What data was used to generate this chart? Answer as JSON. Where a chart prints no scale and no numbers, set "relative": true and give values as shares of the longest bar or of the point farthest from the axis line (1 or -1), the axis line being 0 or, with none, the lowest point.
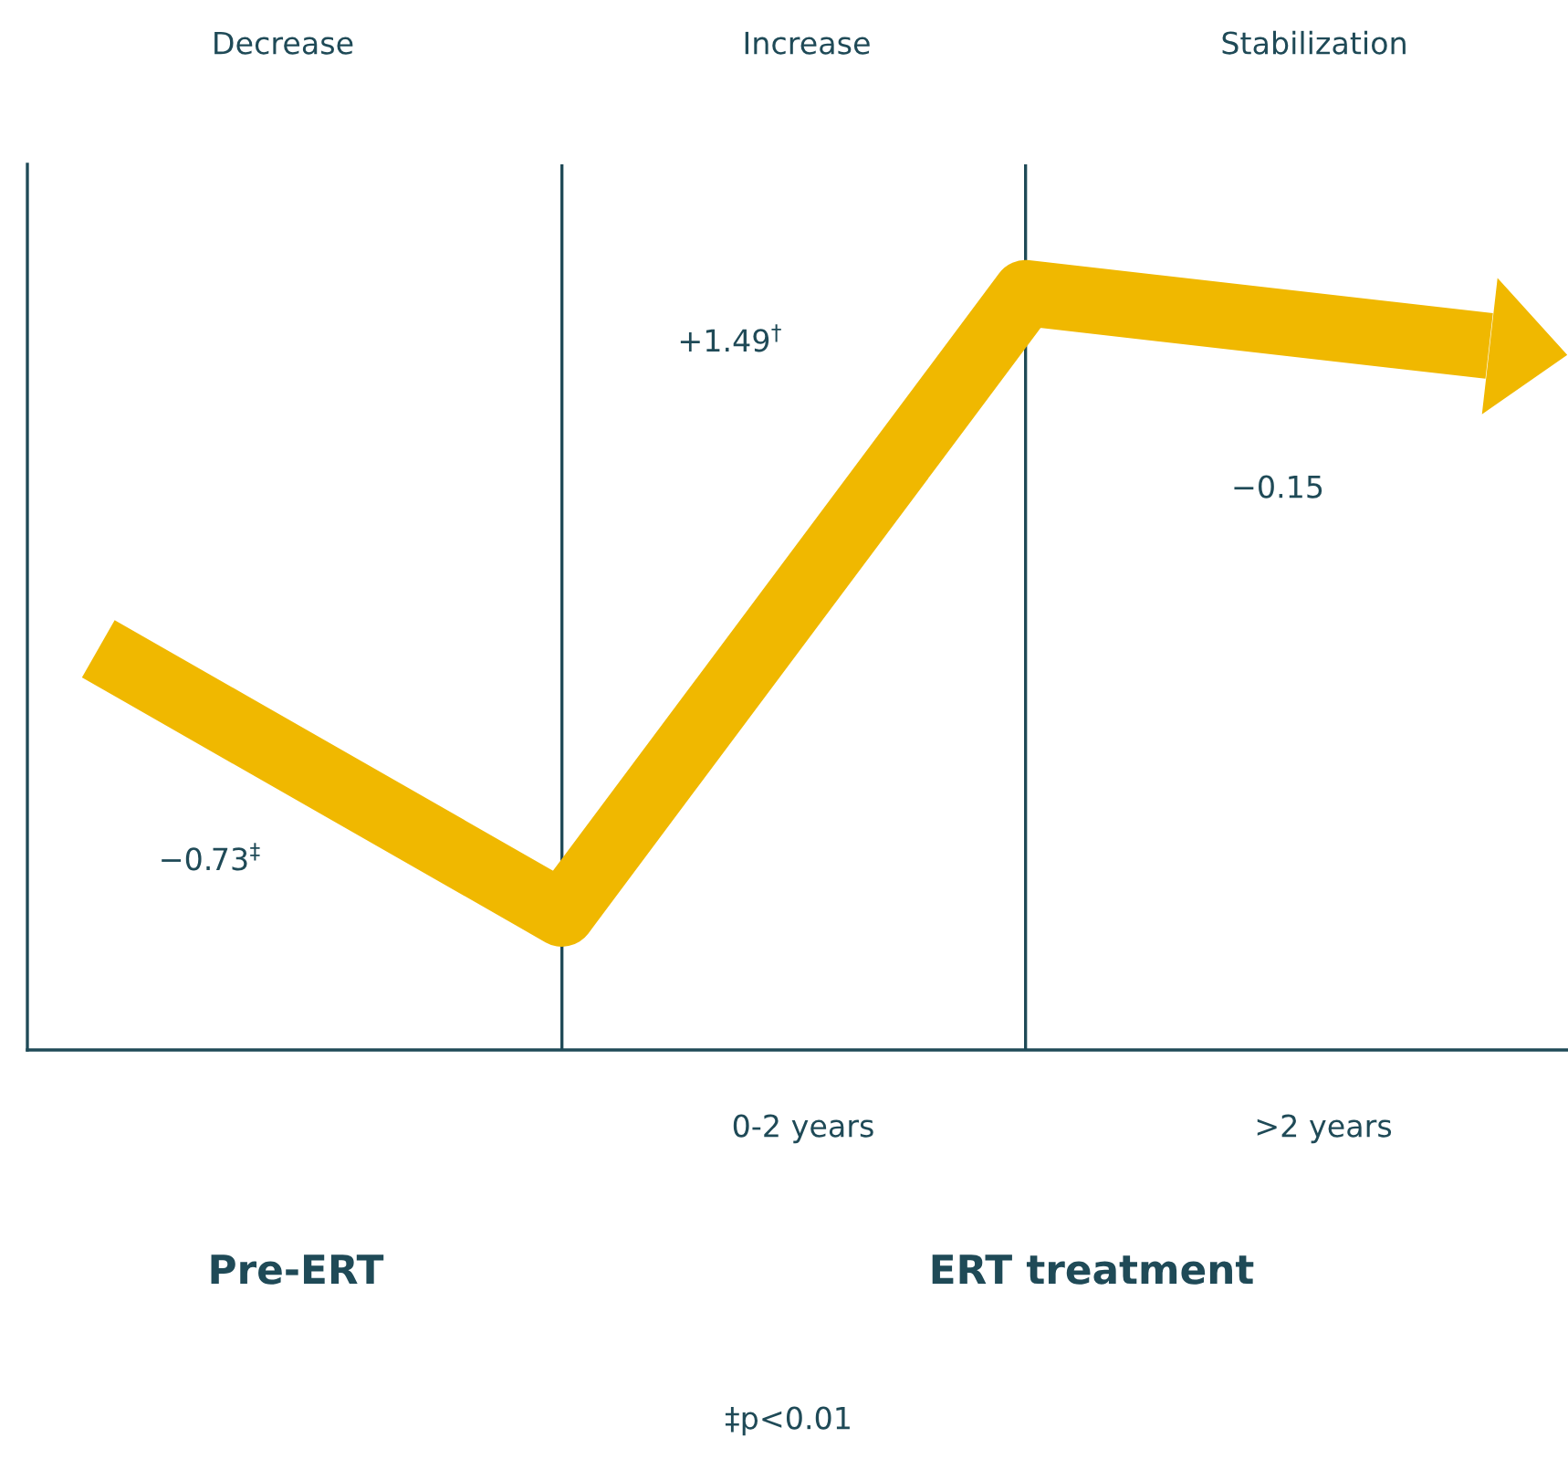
{
  "chart_data": {
    "type": "line",
    "relative": true,
    "categories": [
      null,
      null,
      null,
      null
    ],
    "series": [
      {
        "color": "#f0b800",
        "values": [
          0.53,
          0.18,
          1,
          0.93
        ]
      }
    ],
    "grid": false,
    "marker": "none",
    "line_style": "solid",
    "annotations": [
      "Decrease",
      "Increase",
      "Stabilization",
      "−0.73$^{‡}$",
      "+1.49$^{†}$",
      "−0.15",
      "0-2 years",
      ">2 years",
      "Pre-ERT",
      "ERT treatment",
      "‡p<0.01"
    ]
  }
}
